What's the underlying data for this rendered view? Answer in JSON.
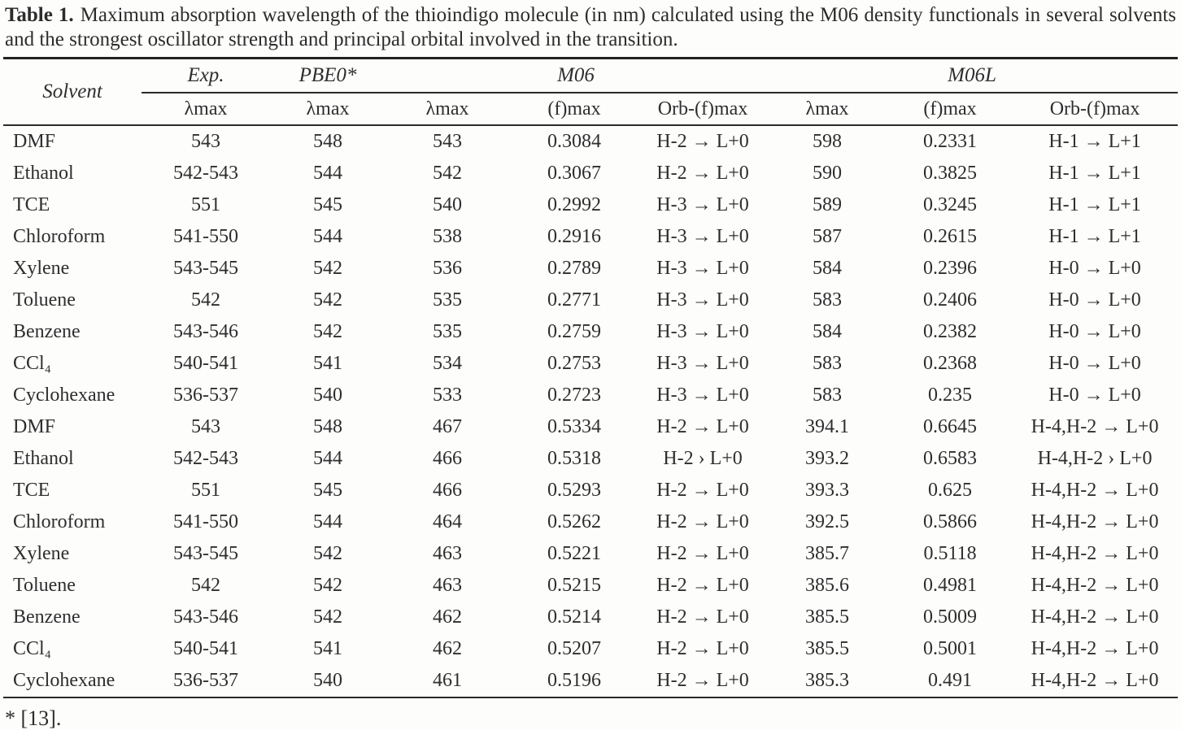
{
  "caption": {
    "label": "Table 1.",
    "text": "Maximum absorption wavelength of the thioindigo molecule (in nm) calculated using the M06 density functionals in several solvents and the strongest oscillator strength and principal orbital involved in the transition."
  },
  "table": {
    "group_headers": {
      "solvent": "Solvent",
      "exp": "Exp.",
      "pbe0": "PBE0*",
      "m06": "M06",
      "m06l": "M06L"
    },
    "sub_headers": [
      "λmax",
      "λmax",
      "λmax",
      "(f)max",
      "Orb-(f)max",
      "λmax",
      "(f)max",
      "Orb-(f)max"
    ],
    "rows": [
      [
        "DMF",
        "543",
        "548",
        "543",
        "0.3084",
        "H-2 → L+0",
        "598",
        "0.2331",
        "H-1 → L+1"
      ],
      [
        "Ethanol",
        "542-543",
        "544",
        "542",
        "0.3067",
        "H-2 → L+0",
        "590",
        "0.3825",
        "H-1 → L+1"
      ],
      [
        "TCE",
        "551",
        "545",
        "540",
        "0.2992",
        "H-3 → L+0",
        "589",
        "0.3245",
        "H-1 → L+1"
      ],
      [
        "Chloroform",
        "541-550",
        "544",
        "538",
        "0.2916",
        "H-3 → L+0",
        "587",
        "0.2615",
        "H-1 → L+1"
      ],
      [
        "Xylene",
        "543-545",
        "542",
        "536",
        "0.2789",
        "H-3 → L+0",
        "584",
        "0.2396",
        "H-0 → L+0"
      ],
      [
        "Toluene",
        "542",
        "542",
        "535",
        "0.2771",
        "H-3 → L+0",
        "583",
        "0.2406",
        "H-0 → L+0"
      ],
      [
        "Benzene",
        "543-546",
        "542",
        "535",
        "0.2759",
        "H-3 → L+0",
        "584",
        "0.2382",
        "H-0 → L+0"
      ],
      [
        "CCl₄",
        "540-541",
        "541",
        "534",
        "0.2753",
        "H-3 → L+0",
        "583",
        "0.2368",
        "H-0 → L+0"
      ],
      [
        "Cyclohexane",
        "536-537",
        "540",
        "533",
        "0.2723",
        "H-3 → L+0",
        "583",
        "0.235",
        "H-0 → L+0"
      ],
      [
        "DMF",
        "543",
        "548",
        "467",
        "0.5334",
        "H-2 → L+0",
        "394.1",
        "0.6645",
        "H-4,H-2 → L+0"
      ],
      [
        "Ethanol",
        "542-543",
        "544",
        "466",
        "0.5318",
        "H-2  › L+0",
        "393.2",
        "0.6583",
        "H-4,H-2  › L+0"
      ],
      [
        "TCE",
        "551",
        "545",
        "466",
        "0.5293",
        "H-2 → L+0",
        "393.3",
        "0.625",
        "H-4,H-2 → L+0"
      ],
      [
        "Chloroform",
        "541-550",
        "544",
        "464",
        "0.5262",
        "H-2 → L+0",
        "392.5",
        "0.5866",
        "H-4,H-2 → L+0"
      ],
      [
        "Xylene",
        "543-545",
        "542",
        "463",
        "0.5221",
        "H-2 → L+0",
        "385.7",
        "0.5118",
        "H-4,H-2 → L+0"
      ],
      [
        "Toluene",
        "542",
        "542",
        "463",
        "0.5215",
        "H-2 → L+0",
        "385.6",
        "0.4981",
        "H-4,H-2 → L+0"
      ],
      [
        "Benzene",
        "543-546",
        "542",
        "462",
        "0.5214",
        "H-2 → L+0",
        "385.5",
        "0.5009",
        "H-4,H-2 → L+0"
      ],
      [
        "CCl₄",
        "540-541",
        "541",
        "462",
        "0.5207",
        "H-2 → L+0",
        "385.5",
        "0.5001",
        "H-4,H-2 → L+0"
      ],
      [
        "Cyclohexane",
        "536-537",
        "540",
        "461",
        "0.5196",
        "H-2 → L+0",
        "385.3",
        "0.491",
        "H-4,H-2 → L+0"
      ]
    ]
  },
  "footnote": "* [13]."
}
